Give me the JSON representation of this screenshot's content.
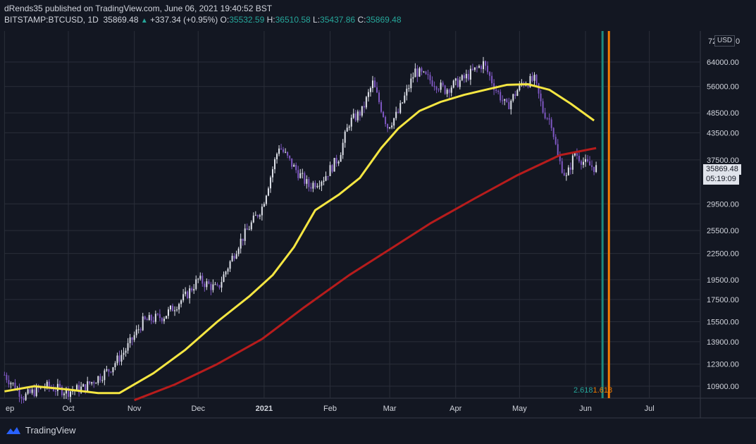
{
  "header": {
    "published_line": "dRends35 published on TradingView.com, June 06, 2021 19:40:52 BST",
    "symbol": "BITSTAMP:BTCUSD, 1D",
    "last_price": "35869.48",
    "change": "+337.34 (+0.95%)",
    "open_label": "O:",
    "open_value": "35532.59",
    "high_label": "H:",
    "high_value": "36510.58",
    "low_label": "L:",
    "low_value": "35437.86",
    "close_label": "C:",
    "close_value": "35869.48"
  },
  "price_axis": {
    "currency": "USD",
    "top_partial_tick": "72",
    "top_right_char": "0",
    "current_price": "35869.48",
    "countdown": "05:19:09"
  },
  "fib_label": {
    "first": "2.618",
    "second": "1.618"
  },
  "footer": {
    "brand": "TradingView"
  },
  "colors": {
    "background": "#131722",
    "grid": "#2a2e39",
    "ma_fast": "#f5e642",
    "ma_slow": "#b71c1c",
    "teal_line": "#1b8a7f",
    "orange_line": "#f57c00",
    "candle_up": "#e0e3eb",
    "candle_down": "#7e57c2"
  },
  "chart_data": {
    "type": "line",
    "title": "",
    "xlabel": "",
    "ylabel": "",
    "y_scale": "log",
    "y_ticks": [
      "64000.00",
      "56000.00",
      "48500.00",
      "43500.00",
      "37500.00",
      "29500.00",
      "25500.00",
      "22500.00",
      "19500.00",
      "17500.00",
      "15500.00",
      "13900.00",
      "12300.00",
      "10900.00"
    ],
    "y_tick_values": [
      64000,
      56000,
      48500,
      43500,
      37500,
      29500,
      25500,
      22500,
      19500,
      17500,
      15500,
      13900,
      12300,
      10900
    ],
    "x_ticks": [
      {
        "label": "ep",
        "date": "2020-09-01",
        "bold": false
      },
      {
        "label": "Oct",
        "date": "2020-10-01",
        "bold": false
      },
      {
        "label": "Nov",
        "date": "2020-11-01",
        "bold": false
      },
      {
        "label": "Dec",
        "date": "2020-12-01",
        "bold": false
      },
      {
        "label": "2021",
        "date": "2021-01-01",
        "bold": true
      },
      {
        "label": "Feb",
        "date": "2021-02-01",
        "bold": false
      },
      {
        "label": "Mar",
        "date": "2021-03-01",
        "bold": false
      },
      {
        "label": "Apr",
        "date": "2021-04-01",
        "bold": false
      },
      {
        "label": "May",
        "date": "2021-05-01",
        "bold": false
      },
      {
        "label": "Jun",
        "date": "2021-06-01",
        "bold": false
      },
      {
        "label": "Jul",
        "date": "2021-07-01",
        "bold": false
      }
    ],
    "price_series": {
      "dates": [
        "2020-09-01",
        "2020-09-10",
        "2020-09-20",
        "2020-10-01",
        "2020-10-08",
        "2020-10-20",
        "2020-10-28",
        "2020-11-05",
        "2020-11-15",
        "2020-11-25",
        "2020-12-01",
        "2020-12-10",
        "2020-12-20",
        "2020-12-31",
        "2021-01-08",
        "2021-01-15",
        "2021-01-22",
        "2021-01-29",
        "2021-02-05",
        "2021-02-10",
        "2021-02-16",
        "2021-02-21",
        "2021-02-28",
        "2021-03-05",
        "2021-03-13",
        "2021-03-20",
        "2021-03-27",
        "2021-04-05",
        "2021-04-14",
        "2021-04-20",
        "2021-04-25",
        "2021-05-02",
        "2021-05-08",
        "2021-05-12",
        "2021-05-16",
        "2021-05-19",
        "2021-05-23",
        "2021-05-27",
        "2021-06-01",
        "2021-06-06"
      ],
      "values": [
        11600,
        10300,
        10900,
        10600,
        10800,
        11900,
        13300,
        15500,
        16000,
        17800,
        19500,
        18500,
        23700,
        29000,
        40500,
        36000,
        32500,
        34000,
        38000,
        46000,
        49000,
        57000,
        45000,
        48500,
        61000,
        58000,
        55000,
        58500,
        63500,
        55000,
        50000,
        57000,
        58000,
        49000,
        46000,
        38000,
        34000,
        39000,
        36700,
        35869
      ]
    },
    "ma_fast_series": {
      "dates": [
        "2020-09-01",
        "2020-09-15",
        "2020-10-01",
        "2020-10-15",
        "2020-10-25",
        "2020-11-10",
        "2020-11-25",
        "2020-12-10",
        "2020-12-25",
        "2021-01-05",
        "2021-01-15",
        "2021-01-25",
        "2021-02-05",
        "2021-02-15",
        "2021-02-25",
        "2021-03-05",
        "2021-03-15",
        "2021-03-25",
        "2021-04-05",
        "2021-04-15",
        "2021-04-25",
        "2021-05-05",
        "2021-05-15",
        "2021-05-25",
        "2021-06-05"
      ],
      "values": [
        10600,
        10900,
        10700,
        10500,
        10500,
        11700,
        13300,
        15500,
        17800,
        20000,
        23300,
        28500,
        31000,
        34000,
        40000,
        44500,
        49000,
        51500,
        53500,
        55000,
        56500,
        56700,
        55000,
        51000,
        46500
      ]
    },
    "ma_slow_series": {
      "dates": [
        "2020-11-01",
        "2020-11-20",
        "2020-12-10",
        "2020-12-31",
        "2021-01-20",
        "2021-02-10",
        "2021-03-01",
        "2021-03-20",
        "2021-04-10",
        "2021-04-30",
        "2021-05-20",
        "2021-06-06"
      ],
      "values": [
        10100,
        11000,
        12300,
        14100,
        16800,
        20000,
        23000,
        26500,
        30400,
        34500,
        38500,
        40000
      ]
    },
    "teal_vline_date": "2021-06-09",
    "orange_vline_date": "2021-06-12"
  }
}
